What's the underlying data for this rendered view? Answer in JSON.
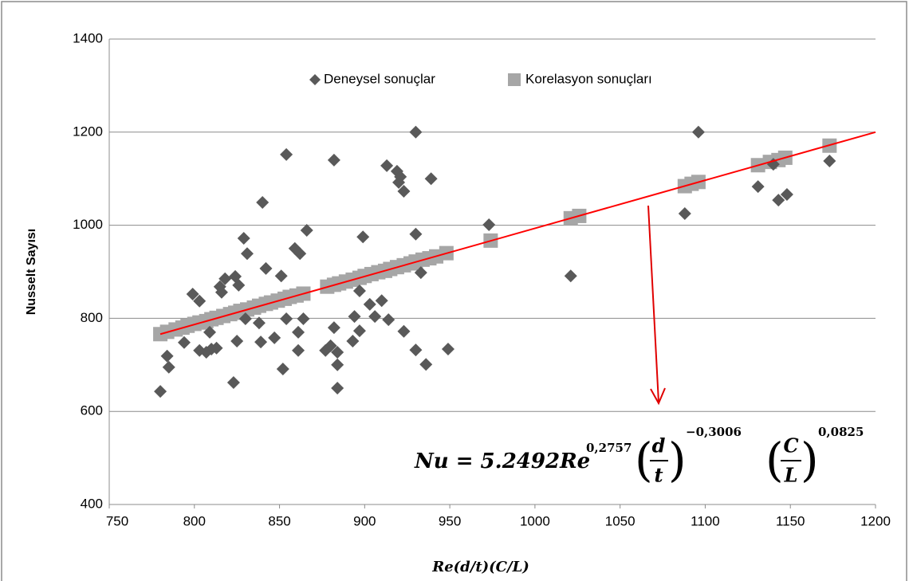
{
  "chart_data": {
    "type": "scatter",
    "xlabel": "Re(d/t)(C/L)",
    "ylabel": "Nusselt Sayısı",
    "xlim": [
      750,
      1200
    ],
    "ylim": [
      400,
      1400
    ],
    "xticks": [
      750,
      800,
      850,
      900,
      950,
      1000,
      1050,
      1100,
      1150,
      1200
    ],
    "yticks": [
      400,
      600,
      800,
      1000,
      1200,
      1400
    ],
    "grid": "y",
    "legend": "top",
    "series": [
      {
        "name": "Deneysel sonuçlar",
        "color": "#595959",
        "marker": "diamond",
        "x": [
          780,
          784,
          785,
          794,
          799,
          803,
          803,
          807,
          809,
          810,
          813,
          815,
          816,
          818,
          823,
          824,
          826,
          825,
          829,
          831,
          830,
          838,
          839,
          840,
          842,
          847,
          851,
          852,
          854,
          854,
          859,
          861,
          861,
          862,
          864,
          866,
          877,
          880,
          882,
          882,
          884,
          884,
          884,
          893,
          894,
          897,
          897,
          899,
          903,
          906,
          910,
          913,
          914,
          919,
          920,
          921,
          923,
          923,
          930,
          930,
          930,
          933,
          936,
          939,
          949,
          973,
          1021,
          1088,
          1096,
          1131,
          1140,
          1143,
          1148,
          1173
        ],
        "values": [
          643,
          719,
          695,
          748,
          852,
          837,
          731,
          727,
          770,
          734,
          736,
          868,
          856,
          885,
          662,
          890,
          871,
          751,
          972,
          939,
          799,
          790,
          749,
          1049,
          907,
          758,
          891,
          691,
          1152,
          799,
          950,
          770,
          731,
          939,
          799,
          989,
          731,
          741,
          1140,
          780,
          727,
          700,
          650,
          751,
          804,
          859,
          773,
          975,
          830,
          804,
          838,
          1128,
          797,
          1116,
          1092,
          1104,
          1073,
          772,
          1200,
          732,
          981,
          898,
          701,
          1100,
          734,
          1001,
          891,
          1025,
          1200,
          1083,
          1131,
          1054,
          1066,
          1138
        ]
      },
      {
        "name": "Korelasyon sonuçları",
        "color": "#a6a6a6",
        "marker": "square",
        "x": [
          780,
          784,
          789,
          793,
          796,
          800,
          803,
          807,
          810,
          813,
          817,
          821,
          824,
          827,
          831,
          835,
          838,
          842,
          845,
          849,
          853,
          856,
          860,
          864,
          878,
          882,
          885,
          889,
          893,
          897,
          900,
          904,
          908,
          912,
          915,
          919,
          923,
          927,
          930,
          934,
          938,
          942,
          948,
          974,
          1021,
          1026,
          1088,
          1092,
          1096,
          1131,
          1138,
          1143,
          1147,
          1173
        ],
        "values": [
          766,
          771,
          776,
          780,
          784,
          788,
          791,
          794,
          798,
          801,
          805,
          809,
          812,
          816,
          819,
          823,
          827,
          831,
          834,
          838,
          842,
          846,
          849,
          853,
          868,
          872,
          875,
          879,
          883,
          887,
          891,
          895,
          899,
          902,
          906,
          910,
          914,
          918,
          922,
          926,
          929,
          933,
          940,
          967,
          1015,
          1020,
          1084,
          1089,
          1093,
          1129,
          1136,
          1140,
          1145,
          1171
        ]
      }
    ],
    "trendline": {
      "color": "#ff0000",
      "x": [
        780,
        1200
      ],
      "values": [
        766,
        1200
      ]
    },
    "annotation": {
      "lhs": "Nu = 5.2492Re",
      "re_exp": "0,2757",
      "d": "d",
      "t": "t",
      "dt_exp": "−0,3006",
      "C": "C",
      "L": "L",
      "cl_exp": "0,0825"
    }
  }
}
